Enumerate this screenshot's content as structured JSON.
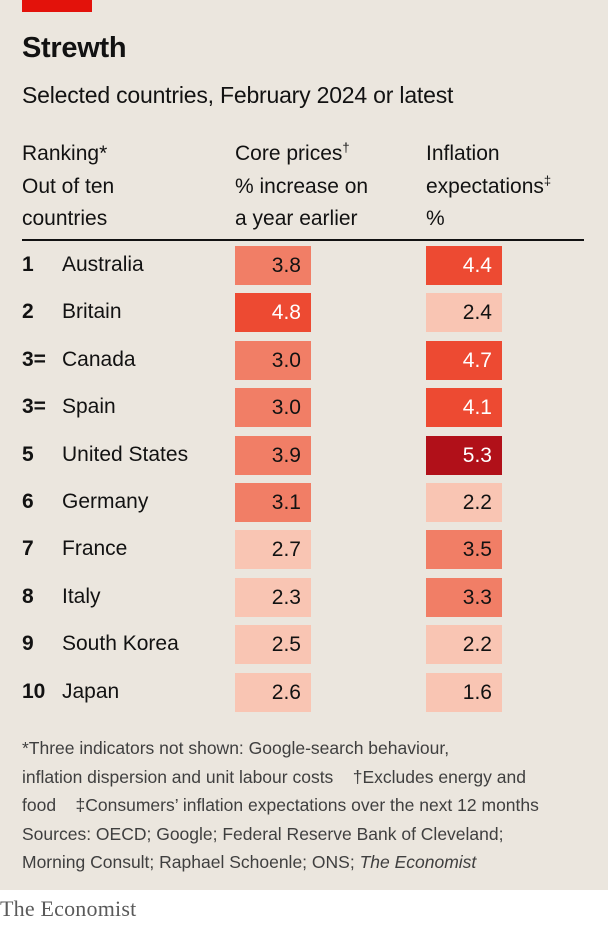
{
  "title": "Strewth",
  "subtitle": "Selected countries, February 2024 or latest",
  "headers": {
    "ranking": {
      "line1": "Ranking",
      "mark": "*",
      "line2": "Out of ten",
      "line3": "countries"
    },
    "core": {
      "line1": "Core prices",
      "mark": "†",
      "line2": "% increase on",
      "line3": "a year earlier"
    },
    "inflation": {
      "line1": "Inflation",
      "line2": "expectations",
      "mark": "‡",
      "line3": "%"
    }
  },
  "chart_data": {
    "type": "table",
    "title": "Strewth",
    "subtitle": "Selected countries, February 2024 or latest",
    "columns": [
      "Ranking",
      "Core prices",
      "Inflation expectations"
    ],
    "rows": [
      {
        "rank": "1",
        "country": "Australia",
        "core": 3.8,
        "core_label": "3.8",
        "infl": 4.4,
        "infl_label": "4.4"
      },
      {
        "rank": "2",
        "country": "Britain",
        "core": 4.8,
        "core_label": "4.8",
        "infl": 2.4,
        "infl_label": "2.4"
      },
      {
        "rank": "3=",
        "country": "Canada",
        "core": 3.0,
        "core_label": "3.0",
        "infl": 4.7,
        "infl_label": "4.7"
      },
      {
        "rank": "3=",
        "country": "Spain",
        "core": 3.0,
        "core_label": "3.0",
        "infl": 4.1,
        "infl_label": "4.1"
      },
      {
        "rank": "5",
        "country": "United States",
        "core": 3.9,
        "core_label": "3.9",
        "infl": 5.3,
        "infl_label": "5.3"
      },
      {
        "rank": "6",
        "country": "Germany",
        "core": 3.1,
        "core_label": "3.1",
        "infl": 2.2,
        "infl_label": "2.2"
      },
      {
        "rank": "7",
        "country": "France",
        "core": 2.7,
        "core_label": "2.7",
        "infl": 3.5,
        "infl_label": "3.5"
      },
      {
        "rank": "8",
        "country": "Italy",
        "core": 2.3,
        "core_label": "2.3",
        "infl": 3.3,
        "infl_label": "3.3"
      },
      {
        "rank": "9",
        "country": "South Korea",
        "core": 2.5,
        "core_label": "2.5",
        "infl": 2.2,
        "infl_label": "2.2"
      },
      {
        "rank": "10",
        "country": "Japan",
        "core": 2.6,
        "core_label": "2.6",
        "infl": 1.6,
        "infl_label": "1.6"
      }
    ],
    "color_scale": [
      {
        "min": 0,
        "max": 3.0,
        "fill": "#f9c5b3",
        "text": "#121212"
      },
      {
        "min": 3.0,
        "max": 4.0,
        "fill": "#f17e66",
        "text": "#121212"
      },
      {
        "min": 4.0,
        "max": 5.0,
        "fill": "#ed4a32",
        "text": "#ffffff"
      },
      {
        "min": 5.0,
        "max": 99,
        "fill": "#b11019",
        "text": "#ffffff"
      }
    ]
  },
  "notes": {
    "line1": "*Three indicators not shown: Google-search behaviour,",
    "line2a": "inflation dispersion and unit labour costs",
    "line2b": "†Excludes energy and",
    "line3a": "food",
    "line3b": "‡Consumers’ inflation expectations over the next 12 months",
    "line4": "Sources: OECD; Google; Federal Reserve Bank of Cleveland;",
    "line5a": "Morning Consult; Raphael Schoenle; ONS;",
    "line5b": "The Economist"
  },
  "logo": "The Economist",
  "colors": {
    "background": "#ebe6de",
    "accent": "#e3120b",
    "text": "#121212"
  }
}
